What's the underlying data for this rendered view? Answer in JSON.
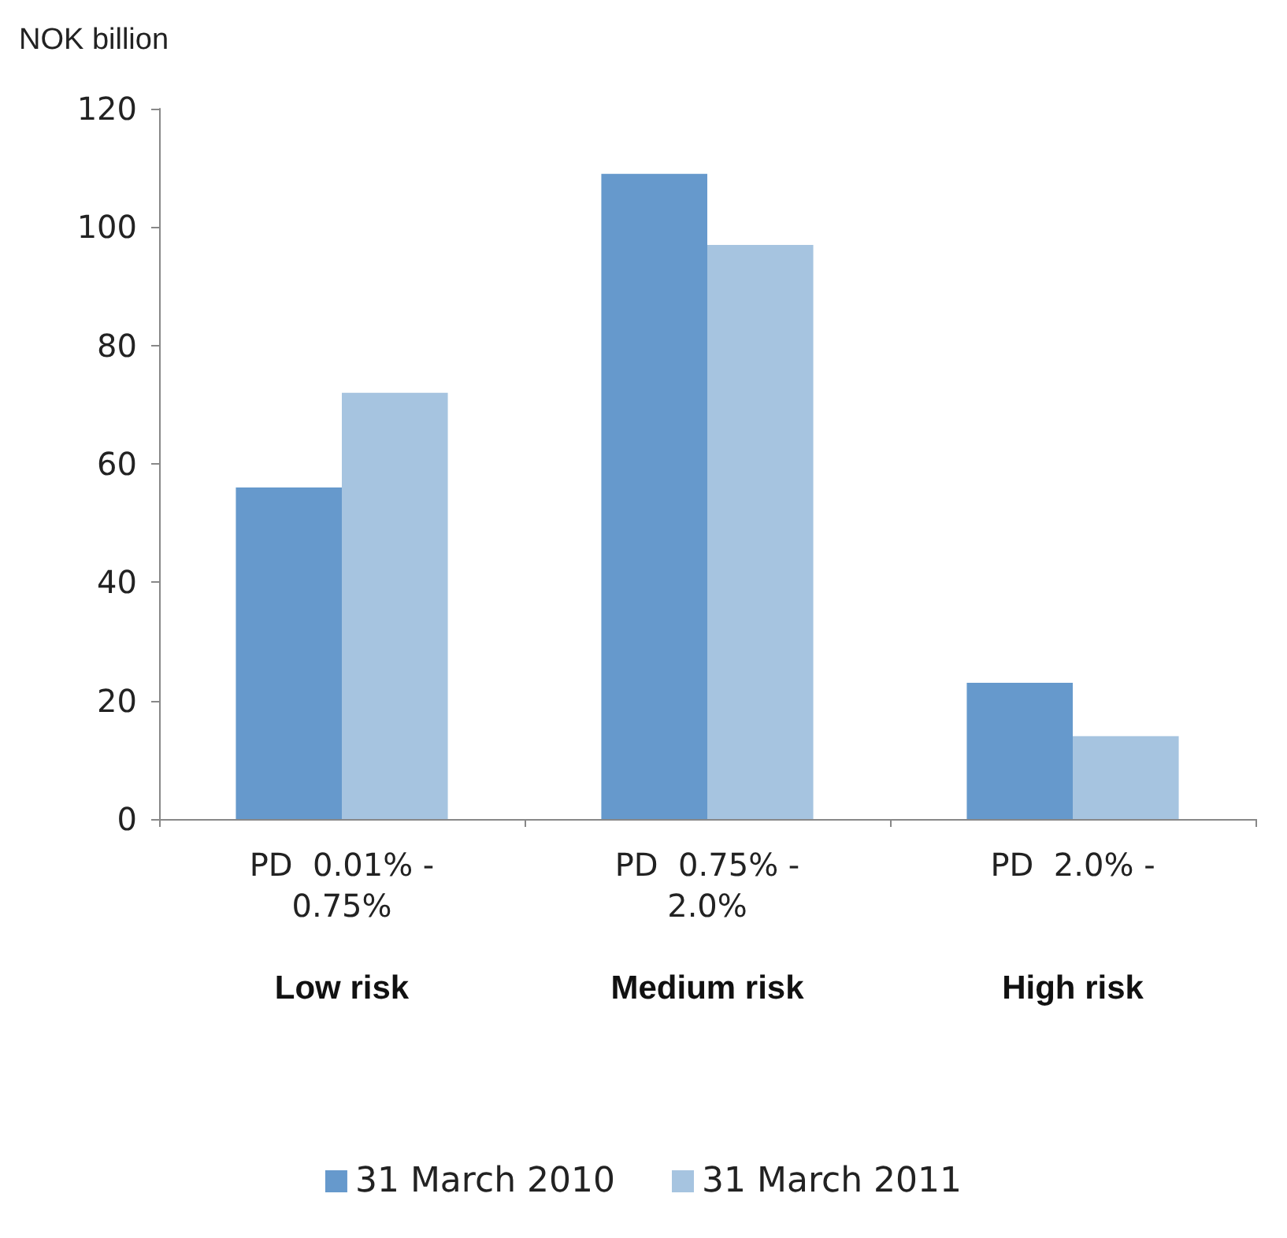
{
  "chart_data": {
    "type": "bar",
    "ylabel": "NOK billion",
    "categories": [
      "PD  0.01% -\n0.75%\nLow risk",
      "PD  0.75% -\n2.0%\nMedium risk",
      "PD  2.0% -\n\nHigh risk"
    ],
    "series": [
      {
        "name": "31 March 2010",
        "color": "#6699cc",
        "values": [
          56,
          109,
          23
        ]
      },
      {
        "name": "31 March 2011",
        "color": "#a6c4e0",
        "values": [
          72,
          97,
          14
        ]
      }
    ],
    "ylim": [
      0,
      120
    ],
    "yticks": [
      0,
      20,
      40,
      60,
      80,
      100,
      120
    ],
    "grid": false,
    "legend": "bottom"
  }
}
